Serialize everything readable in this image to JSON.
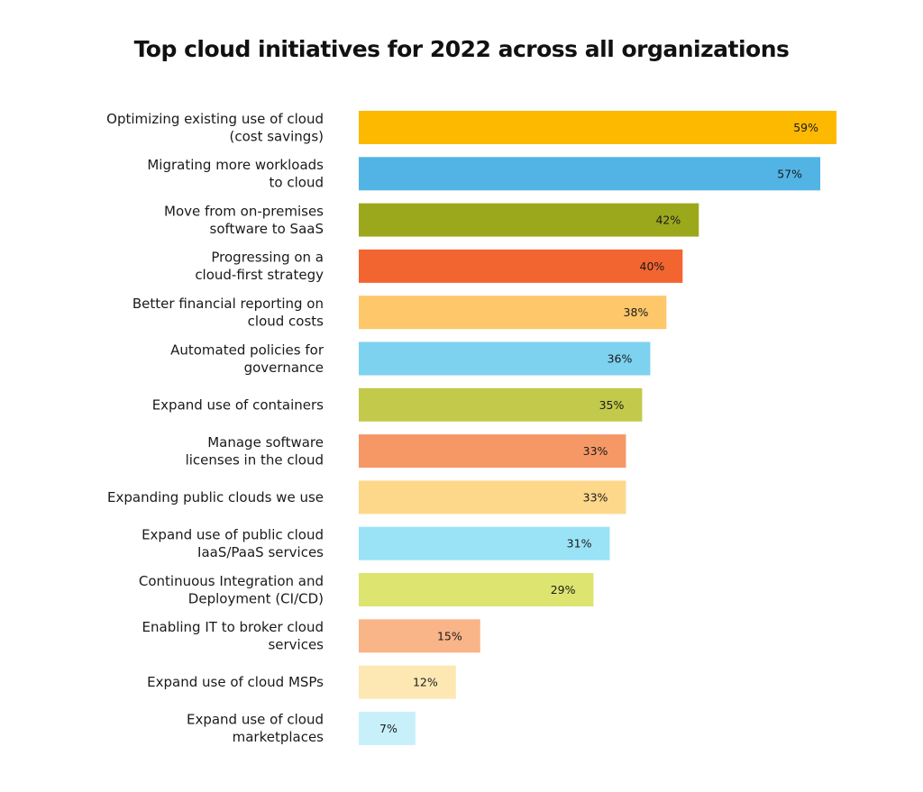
{
  "chart_data": {
    "type": "bar",
    "orientation": "horizontal",
    "title": "Top cloud initiatives for 2022 across all organizations",
    "categories": [
      [
        "Optimizing existing use of cloud",
        "(cost savings)"
      ],
      [
        "Migrating more workloads",
        "to cloud"
      ],
      [
        "Move from on-premises",
        "software to SaaS"
      ],
      [
        "Progressing on a",
        "cloud-first strategy"
      ],
      [
        "Better financial reporting on",
        "cloud costs"
      ],
      [
        "Automated policies for",
        "governance"
      ],
      [
        "Expand use of containers"
      ],
      [
        "Manage software",
        "licenses in the cloud"
      ],
      [
        "Expanding public clouds we use"
      ],
      [
        "Expand use of public cloud",
        "IaaS/PaaS services"
      ],
      [
        "Continuous Integration and",
        "Deployment (CI/CD)"
      ],
      [
        "Enabling IT to broker cloud",
        "services"
      ],
      [
        "Expand use of cloud MSPs"
      ],
      [
        "Expand use of cloud",
        "marketplaces"
      ]
    ],
    "values": [
      59,
      57,
      42,
      40,
      38,
      36,
      35,
      33,
      33,
      31,
      29,
      15,
      12,
      7
    ],
    "data_labels": [
      "59%",
      "57%",
      "42%",
      "40%",
      "38%",
      "36%",
      "35%",
      "33%",
      "33%",
      "31%",
      "29%",
      "15%",
      "12%",
      "7%"
    ],
    "colors": [
      "#FDB900",
      "#52B4E5",
      "#9CA81B",
      "#F26531",
      "#FDC76A",
      "#7DD2F0",
      "#C3C94A",
      "#F59866",
      "#FDD78A",
      "#9AE3F7",
      "#DDE46F",
      "#F9B488",
      "#FDE8B3",
      "#C7F0FB"
    ],
    "xlim": [
      0,
      59
    ],
    "axes_visible": false,
    "grid": false,
    "legend": "none"
  }
}
